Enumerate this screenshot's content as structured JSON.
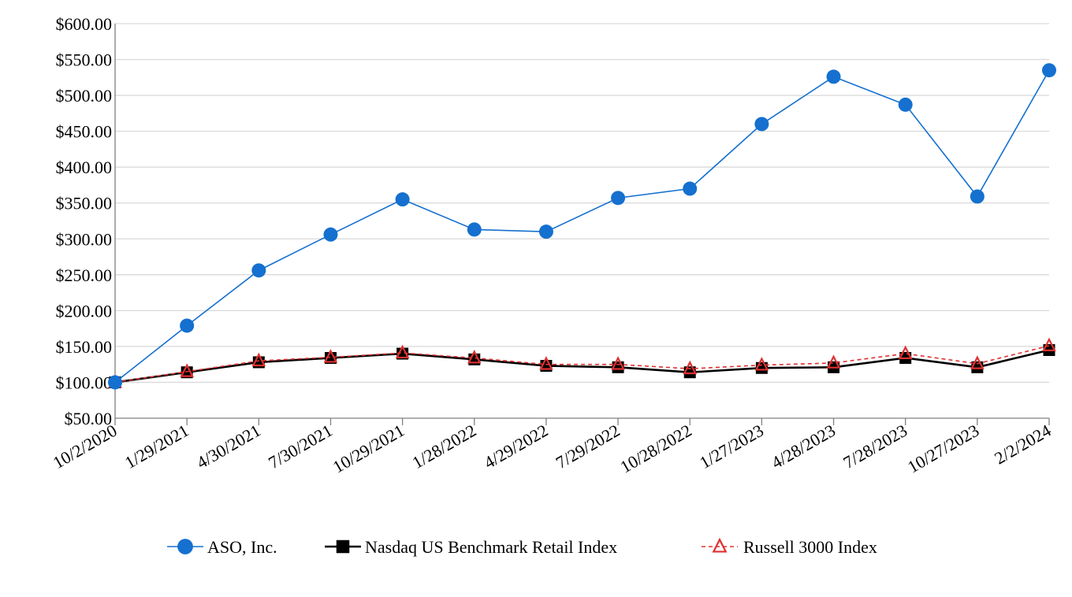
{
  "chart_data": {
    "type": "line",
    "title": "",
    "xlabel": "",
    "ylabel": "",
    "x": [
      "10/2/2020",
      "1/29/2021",
      "4/30/2021",
      "7/30/2021",
      "10/29/2021",
      "1/28/2022",
      "4/29/2022",
      "7/29/2022",
      "10/28/2022",
      "1/27/2023",
      "4/28/2023",
      "7/28/2023",
      "10/27/2023",
      "2/2/2024"
    ],
    "y_ticks": [
      "$50.00",
      "$100.00",
      "$150.00",
      "$200.00",
      "$250.00",
      "$300.00",
      "$350.00",
      "$400.00",
      "$450.00",
      "$500.00",
      "$550.00",
      "$600.00"
    ],
    "ylim": [
      50,
      600
    ],
    "grid": "horizontal",
    "legend_position": "bottom",
    "series": [
      {
        "name": "ASO, Inc.",
        "color": "#1570cf",
        "marker": "circle",
        "line_style": "solid",
        "values": [
          100,
          179,
          256,
          306,
          355,
          313,
          310,
          357,
          370,
          460,
          526,
          487,
          359,
          535
        ]
      },
      {
        "name": "Nasdaq US Benchmark Retail Index",
        "color": "#000000",
        "marker": "square",
        "line_style": "solid",
        "values": [
          100,
          114,
          128,
          134,
          140,
          132,
          123,
          121,
          114,
          120,
          121,
          134,
          121,
          145
        ]
      },
      {
        "name": "Russell 3000 Index",
        "color": "#e03030",
        "marker": "triangle",
        "line_style": "dashed",
        "values": [
          100,
          115,
          130,
          135,
          141,
          134,
          125,
          125,
          119,
          124,
          127,
          140,
          126,
          151
        ]
      }
    ]
  }
}
